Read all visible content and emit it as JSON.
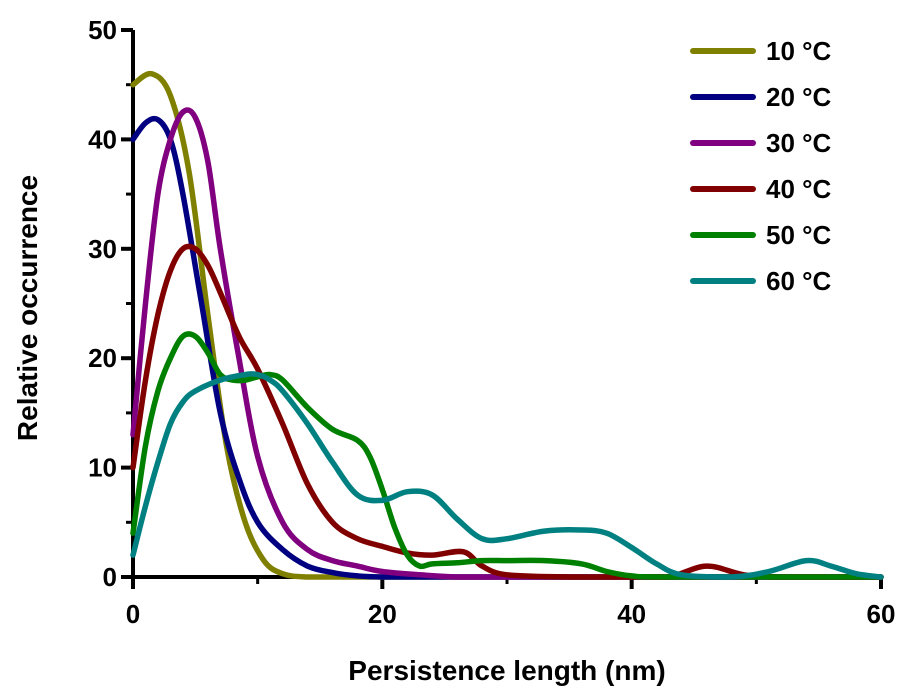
{
  "chart_data": {
    "type": "line",
    "xlabel": "Persistence length (nm)",
    "ylabel": "Relative occurrence",
    "xlim": [
      0,
      60
    ],
    "ylim": [
      0,
      50
    ],
    "x_ticks": [
      "0",
      "20",
      "40",
      "60"
    ],
    "y_ticks": [
      "0",
      "10",
      "20",
      "30",
      "40",
      "50"
    ],
    "grid": false,
    "legend_position": "top-right",
    "series": [
      {
        "name": "10 °C",
        "color": "#808000",
        "x": [
          0,
          1.5,
          3,
          4.5,
          6,
          7.5,
          9,
          10.5,
          12,
          14,
          17,
          20,
          30,
          40,
          50,
          60
        ],
        "y": [
          45,
          46,
          44,
          37,
          24,
          12,
          5,
          1.5,
          0.3,
          0,
          0,
          0,
          0,
          0,
          0,
          0
        ]
      },
      {
        "name": "20 °C",
        "color": "#000080",
        "x": [
          0,
          1,
          2,
          3,
          4,
          5.5,
          7,
          8.5,
          10,
          12,
          14,
          16,
          18,
          20,
          25,
          30,
          60
        ],
        "y": [
          40,
          41.5,
          41.8,
          40,
          35,
          25,
          15,
          9,
          5,
          2.5,
          1,
          0.4,
          0.1,
          0,
          0,
          0,
          0
        ]
      },
      {
        "name": "30 °C",
        "color": "#800080",
        "x": [
          0,
          1,
          2,
          3,
          4,
          5,
          6,
          7,
          8.5,
          10,
          12,
          14,
          16,
          18,
          20,
          23,
          26,
          30,
          60
        ],
        "y": [
          13,
          25,
          35,
          40,
          42.5,
          42,
          38,
          30,
          20,
          11,
          5,
          2.5,
          1.5,
          1,
          0.5,
          0.2,
          0,
          0,
          0
        ]
      },
      {
        "name": "40 °C",
        "color": "#800000",
        "x": [
          0,
          1,
          2,
          3,
          4,
          5,
          6,
          7,
          8.5,
          10,
          12,
          14,
          16,
          18,
          20,
          22,
          24,
          26.5,
          28,
          30,
          35,
          40,
          43,
          46,
          49,
          52,
          60
        ],
        "y": [
          10,
          18,
          24,
          28,
          30,
          30,
          28.5,
          26,
          22,
          19,
          14,
          8.5,
          5,
          3.5,
          2.8,
          2.2,
          2,
          2.3,
          1,
          0.2,
          0,
          0,
          0,
          1,
          0.2,
          0,
          0
        ]
      },
      {
        "name": "50 °C",
        "color": "#008000",
        "x": [
          0,
          1,
          2,
          3,
          4,
          5,
          6,
          7,
          8,
          9,
          10,
          11,
          12,
          14,
          16,
          18,
          19,
          20,
          21,
          22,
          23,
          24,
          26,
          28,
          30,
          33,
          36,
          38,
          40,
          43,
          60
        ],
        "y": [
          4,
          12,
          17,
          20,
          22,
          22,
          20.5,
          18.5,
          18,
          18,
          18.3,
          18.5,
          18,
          15.5,
          13.5,
          12.5,
          11,
          8,
          4.5,
          2,
          1,
          1.2,
          1.3,
          1.5,
          1.5,
          1.5,
          1.2,
          0.5,
          0.1,
          0,
          0
        ]
      },
      {
        "name": "60 °C",
        "color": "#008080",
        "x": [
          0,
          1,
          2,
          3,
          4,
          5,
          7,
          9,
          10,
          11,
          12,
          14,
          16,
          18,
          20,
          22,
          24,
          26,
          28,
          30,
          33,
          36,
          38,
          40,
          42,
          44,
          48,
          51,
          54,
          56,
          58,
          60
        ],
        "y": [
          2,
          6.5,
          10.5,
          14,
          16,
          17,
          18,
          18.5,
          18.5,
          18,
          17,
          14,
          10.5,
          7.5,
          7,
          7.8,
          7.5,
          5.3,
          3.5,
          3.5,
          4.2,
          4.3,
          4,
          2.7,
          1.2,
          0.2,
          0,
          0.5,
          1.5,
          1,
          0.3,
          0
        ]
      }
    ]
  }
}
